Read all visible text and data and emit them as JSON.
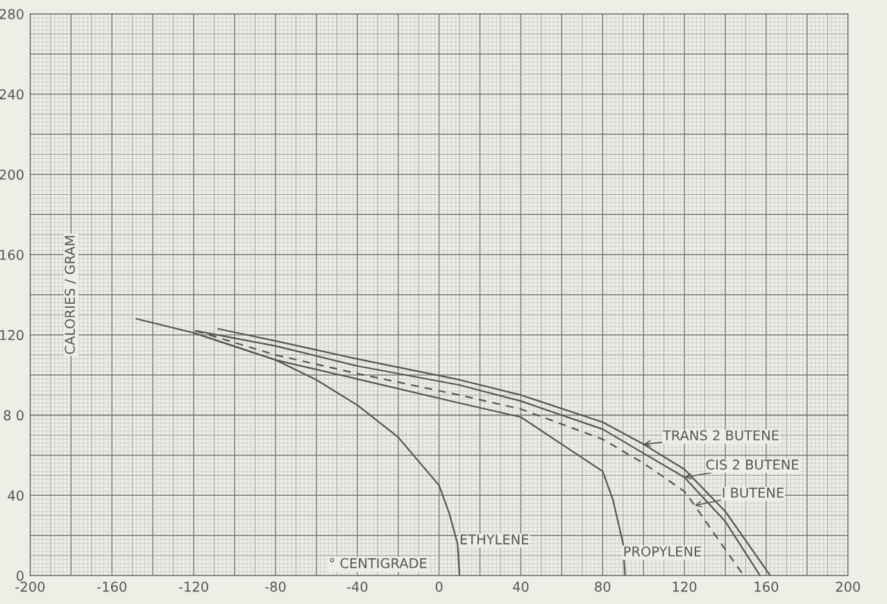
{
  "chart_data": {
    "type": "line",
    "xlabel": "° CENTIGRADE",
    "ylabel": "CALORIES / GRAM",
    "xlim": [
      -200,
      200
    ],
    "ylim": [
      0,
      280
    ],
    "xticks": [
      -200,
      -160,
      -120,
      -80,
      -40,
      0,
      40,
      80,
      120,
      160,
      200
    ],
    "yticks": [
      0,
      40,
      {
        "value": 80,
        "label": "8 0"
      },
      120,
      160,
      200,
      240,
      280
    ],
    "grid": true,
    "marker": "none",
    "series": [
      {
        "color": "#555555",
        "line_style": "solid",
        "x": [
          -148,
          -120,
          -80,
          -60,
          -40,
          -20,
          0,
          5,
          9,
          10
        ],
        "values": [
          128,
          121,
          107.5,
          97.6,
          85,
          69,
          45,
          31,
          16,
          0
        ]
      },
      {
        "color": "#555555",
        "line_style": "solid",
        "x": [
          -120,
          -80,
          -40,
          10,
          40,
          60,
          80,
          85,
          90,
          91
        ],
        "values": [
          121,
          107.5,
          98,
          86,
          79,
          65.5,
          52,
          38,
          16,
          0
        ]
      },
      {
        "color": "#555555",
        "line_style": "dashed",
        "x": [
          -119,
          -80,
          -40,
          10,
          40,
          80,
          100,
          120,
          125,
          140,
          149
        ],
        "values": [
          122,
          110,
          100.7,
          90,
          83,
          68,
          56,
          42,
          35,
          13,
          0
        ]
      },
      {
        "color": "#555555",
        "line_style": "solid",
        "x": [
          -119,
          -80,
          -40,
          10,
          40,
          80,
          100,
          120,
          140,
          157
        ],
        "values": [
          122,
          114.5,
          104.5,
          95,
          87,
          73,
          61,
          49,
          27,
          0
        ]
      },
      {
        "color": "#555555",
        "line_style": "solid",
        "x": [
          -108,
          -80,
          -40,
          10,
          40,
          80,
          100,
          120,
          140,
          162
        ],
        "values": [
          123,
          117,
          108,
          97.6,
          90,
          76.5,
          65.5,
          53,
          32,
          0
        ]
      }
    ],
    "annotations": [
      {
        "text": "ETHYLENE",
        "x": 9,
        "y": 16
      },
      {
        "text": "PROPYLENE",
        "x": 90,
        "y": 10
      },
      {
        "text": "TRANS 2 BUTENE",
        "x": 100,
        "y": 65.5
      },
      {
        "text": "CIS 2 BUTENE",
        "x": 120,
        "y": 49
      },
      {
        "text": "I BUTENE",
        "x": 125,
        "y": 35
      }
    ]
  }
}
